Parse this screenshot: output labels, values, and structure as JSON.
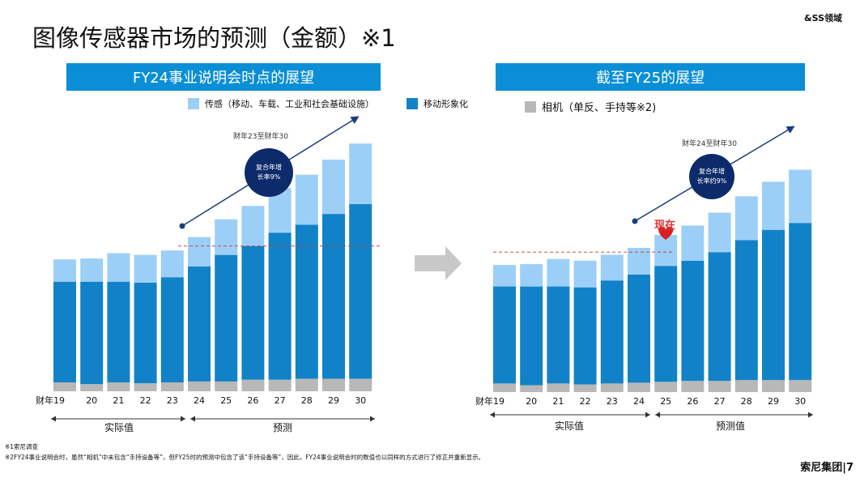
{
  "header": {
    "title": "图像传感器市场的预测（金额）※1",
    "corner_label": "&SS领域"
  },
  "banners": {
    "left": "FY24事业说明会时点的展望",
    "right": "截至FY25的展望"
  },
  "legend": {
    "sensing": "传感（移动、车载、工业和社会基础设施）",
    "mobile": "移动形象化",
    "camera": "相机（单反、手持等※2)"
  },
  "colors": {
    "banner": "#0a8fd6",
    "sensing": "#9ccff7",
    "mobile": "#1282c8",
    "camera": "#b8b8b8",
    "arrow": "#1a3d7a",
    "circle": "#0d2b6b",
    "dashed": "#c0392b",
    "big_arrow": "#c8c8c8",
    "now_marker": "#d92020"
  },
  "annotations": {
    "left_arrow_label": "财年23至财年30",
    "left_cagr_line1": "复合年增",
    "left_cagr_line2": "长率9%",
    "right_arrow_label": "财年24至财年30",
    "right_cagr_line1": "复合年增",
    "right_cagr_line2": "长率约9%",
    "now_label": "现在"
  },
  "axis": {
    "left_period_actual": "实际值",
    "left_period_forecast": "预测",
    "right_period_actual": "实际值",
    "right_period_forecast": "预测值"
  },
  "chart_data": [
    {
      "type": "bar",
      "stacked": true,
      "title": "FY24事业说明会时点的展望",
      "categories": [
        "财年19",
        "20",
        "21",
        "22",
        "23",
        "24",
        "25",
        "26",
        "27",
        "28",
        "29",
        "30"
      ],
      "series": [
        {
          "name": "相机（单反、手持等※2)",
          "values": [
            1.0,
            0.8,
            1.0,
            0.9,
            1.0,
            1.1,
            1.1,
            1.3,
            1.3,
            1.4,
            1.4,
            1.4
          ]
        },
        {
          "name": "移动形象化",
          "values": [
            11.3,
            11.5,
            11.3,
            11.3,
            11.8,
            12.9,
            14.2,
            15.0,
            16.5,
            17.3,
            18.5,
            19.6
          ]
        },
        {
          "name": "传感（移动、车载、工业和社会基础设施）",
          "values": [
            2.5,
            2.6,
            3.2,
            3.1,
            3.0,
            3.3,
            4.0,
            4.5,
            5.0,
            5.6,
            6.1,
            6.8
          ]
        }
      ],
      "reference_line": 16.3
    },
    {
      "type": "bar",
      "stacked": true,
      "title": "截至FY25的展望",
      "categories": [
        "财年19",
        "20",
        "21",
        "22",
        "23",
        "24",
        "25",
        "26",
        "27",
        "28",
        "29",
        "30"
      ],
      "series": [
        {
          "name": "相机（单反、手持等※2)",
          "values": [
            1.0,
            0.8,
            1.0,
            0.9,
            1.0,
            1.1,
            1.2,
            1.3,
            1.3,
            1.4,
            1.4,
            1.4
          ]
        },
        {
          "name": "移动形象化",
          "values": [
            11.3,
            11.5,
            11.3,
            11.3,
            12.0,
            12.6,
            13.5,
            14.0,
            15.0,
            16.3,
            17.5,
            18.3
          ]
        },
        {
          "name": "传感（移动、车载、工业和社会基础设施）",
          "values": [
            2.5,
            2.6,
            3.2,
            3.1,
            3.0,
            3.1,
            3.6,
            4.1,
            4.6,
            5.1,
            5.6,
            6.2
          ]
        }
      ],
      "reference_line": 16.3
    }
  ],
  "footnotes": {
    "note1": "※1索尼调查",
    "note2": "※2FY24事业说明会时，虽然“相机”中未包含“手持设备等”，但FY25时的预测中包含了该“手持设备等”，因此，FY24事业说明会时的数值也以同样的方式进行了修正并重新显示。"
  },
  "brand": "索尼集团|7"
}
